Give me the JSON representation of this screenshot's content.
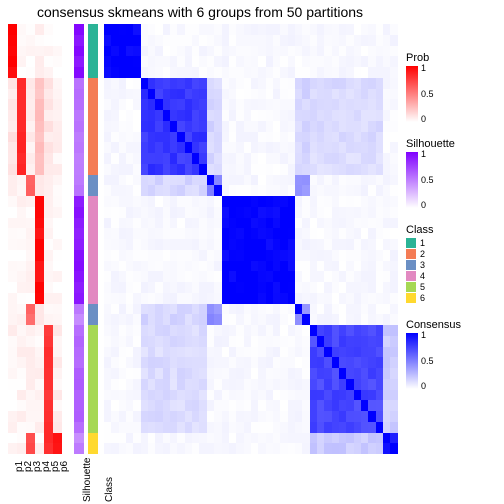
{
  "title": "consensus skmeans with 6 groups from 50 partitions",
  "n_samples": 40,
  "colors": {
    "prob_max": "#ff0000",
    "prob_min": "#ffffff",
    "sil_max": "#8000ff",
    "sil_min": "#ffffff",
    "cons_max": "#0000ff",
    "cons_min": "#ffffff",
    "class": {
      "1": "#2bb396",
      "2": "#f47c55",
      "3": "#6b8fc4",
      "4": "#e289c1",
      "5": "#a6d854",
      "6": "#ffd92f"
    },
    "text": "#000000",
    "background": "#ffffff"
  },
  "class_sizes": [
    5,
    9,
    2,
    10,
    2,
    10,
    2
  ],
  "class_labels_order": [
    1,
    2,
    3,
    4,
    3,
    5,
    6
  ],
  "prob_labels": [
    "p1",
    "p2",
    "p3",
    "p4",
    "p5",
    "p6"
  ],
  "sidebar_labels": [
    "Silhouette",
    "Class"
  ],
  "prob_data_by_class": {
    "1": [
      0.98,
      0.02,
      0.01,
      0.05,
      0.02,
      0.01
    ],
    "2": [
      0.1,
      0.85,
      0.08,
      0.25,
      0.1,
      0.05
    ],
    "3": [
      0.05,
      0.05,
      0.6,
      0.08,
      0.05,
      0.03
    ],
    "4": [
      0.02,
      0.03,
      0.03,
      0.95,
      0.02,
      0.02
    ],
    "5": [
      0.04,
      0.04,
      0.06,
      0.05,
      0.8,
      0.06
    ],
    "6": [
      0.03,
      0.05,
      0.7,
      0.04,
      0.8,
      0.95
    ]
  },
  "sil_by_class": {
    "1": 0.95,
    "2": 0.55,
    "3": 0.5,
    "4": 0.92,
    "5": 0.6,
    "6": 0.48
  },
  "consensus_blocks": [
    {
      "class": 1,
      "intra": 1.0
    },
    {
      "class": 2,
      "intra": 0.78
    },
    {
      "class": 3,
      "intra": 0.45
    },
    {
      "class": 4,
      "intra": 1.0
    },
    {
      "class": 3,
      "intra": 0.45
    },
    {
      "class": 5,
      "intra": 0.72
    },
    {
      "class": 6,
      "intra": 0.9
    }
  ],
  "inter_consensus": 0.05,
  "legends": {
    "prob": {
      "title": "Prob",
      "ticks": [
        "1",
        "0.5",
        "0"
      ]
    },
    "sil": {
      "title": "Silhouette",
      "ticks": [
        "1",
        "0.5",
        "0"
      ]
    },
    "class": {
      "title": "Class",
      "items": [
        "1",
        "2",
        "3",
        "4",
        "5",
        "6"
      ]
    },
    "cons": {
      "title": "Consensus",
      "ticks": [
        "1",
        "0.5",
        "0"
      ]
    }
  },
  "fontsize": {
    "title": 14,
    "axis": 10,
    "legend_title": 11,
    "legend_tick": 9
  }
}
